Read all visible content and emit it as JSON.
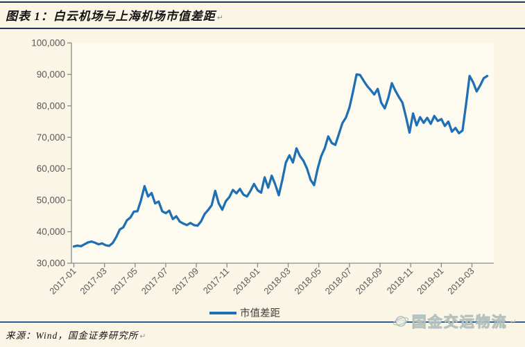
{
  "header": {
    "title": "图表 1：白云机场与上海机场市值差距",
    "return_mark": "↵"
  },
  "footer": {
    "source": "来源：Wind，国金证券研究所",
    "return_mark": "↵"
  },
  "watermark": {
    "text": "国金交运物流",
    "icon": "globe-icon",
    "return_mark": "↵"
  },
  "colors": {
    "background": "#fbf5e5",
    "plot_background": "#fdfaf0",
    "accent_navy": "#1b3a5f",
    "rule_blue": "#2d5e8f",
    "line_blue": "#1e6fb4",
    "axis_gray": "#8a8a8a",
    "label_gray": "#595959",
    "legend_text": "#404040",
    "watermark_gray": "#b3c0bd"
  },
  "chart_data": {
    "type": "line",
    "title": "白云机场与上海机场市值差距",
    "xlabel": "",
    "ylabel": "",
    "grid": false,
    "ylim": [
      30000,
      100000
    ],
    "xlim_months": [
      0,
      27.2
    ],
    "y_ticks": [
      30000,
      40000,
      50000,
      60000,
      70000,
      80000,
      90000,
      100000
    ],
    "x_tick_months": [
      0,
      2,
      4,
      6,
      8,
      10,
      12,
      14,
      16,
      18,
      20,
      22,
      24,
      26
    ],
    "x_tick_labels": [
      "2017-01",
      "2017-03",
      "2017-05",
      "2017-07",
      "2017-09",
      "2017-11",
      "2018-01",
      "2018-03",
      "2018-05",
      "2018-07",
      "2018-09",
      "2018-11",
      "2019-01",
      "2019-03"
    ],
    "legend": {
      "label": "市值差距",
      "position": "bottom-center"
    },
    "series": [
      {
        "name": "市值差距",
        "color": "#1e6fb4",
        "x_unit": "months-since-2017-01",
        "x_start_month": 0,
        "x_step_month": 0.23077,
        "values": [
          35300,
          35600,
          35400,
          36000,
          36600,
          36900,
          36500,
          36000,
          36300,
          35700,
          35500,
          36400,
          38300,
          40700,
          41400,
          43600,
          44500,
          46400,
          46500,
          50000,
          54500,
          51200,
          52300,
          49000,
          49600,
          46500,
          45900,
          46700,
          44000,
          44900,
          43200,
          42600,
          42100,
          42800,
          42100,
          41900,
          43300,
          45600,
          46900,
          48400,
          53000,
          49000,
          47000,
          49700,
          51000,
          53300,
          52200,
          53600,
          51800,
          51200,
          53000,
          55200,
          53200,
          52400,
          57300,
          54000,
          57800,
          55000,
          51600,
          56500,
          62000,
          64300,
          62000,
          66500,
          64000,
          62500,
          60000,
          56500,
          54800,
          60000,
          64000,
          66500,
          70300,
          68200,
          67600,
          71000,
          74500,
          76300,
          79500,
          84500,
          90000,
          89800,
          88000,
          86300,
          85000,
          83600,
          85400,
          81000,
          79200,
          82500,
          87200,
          84800,
          82800,
          81000,
          76500,
          71500,
          77600,
          73800,
          76400,
          74600,
          76200,
          74300,
          76800,
          75200,
          75800,
          73600,
          75000,
          71800,
          73000,
          71300,
          72200,
          80500,
          89500,
          87500,
          84600,
          86500,
          88800,
          89500
        ]
      }
    ]
  }
}
